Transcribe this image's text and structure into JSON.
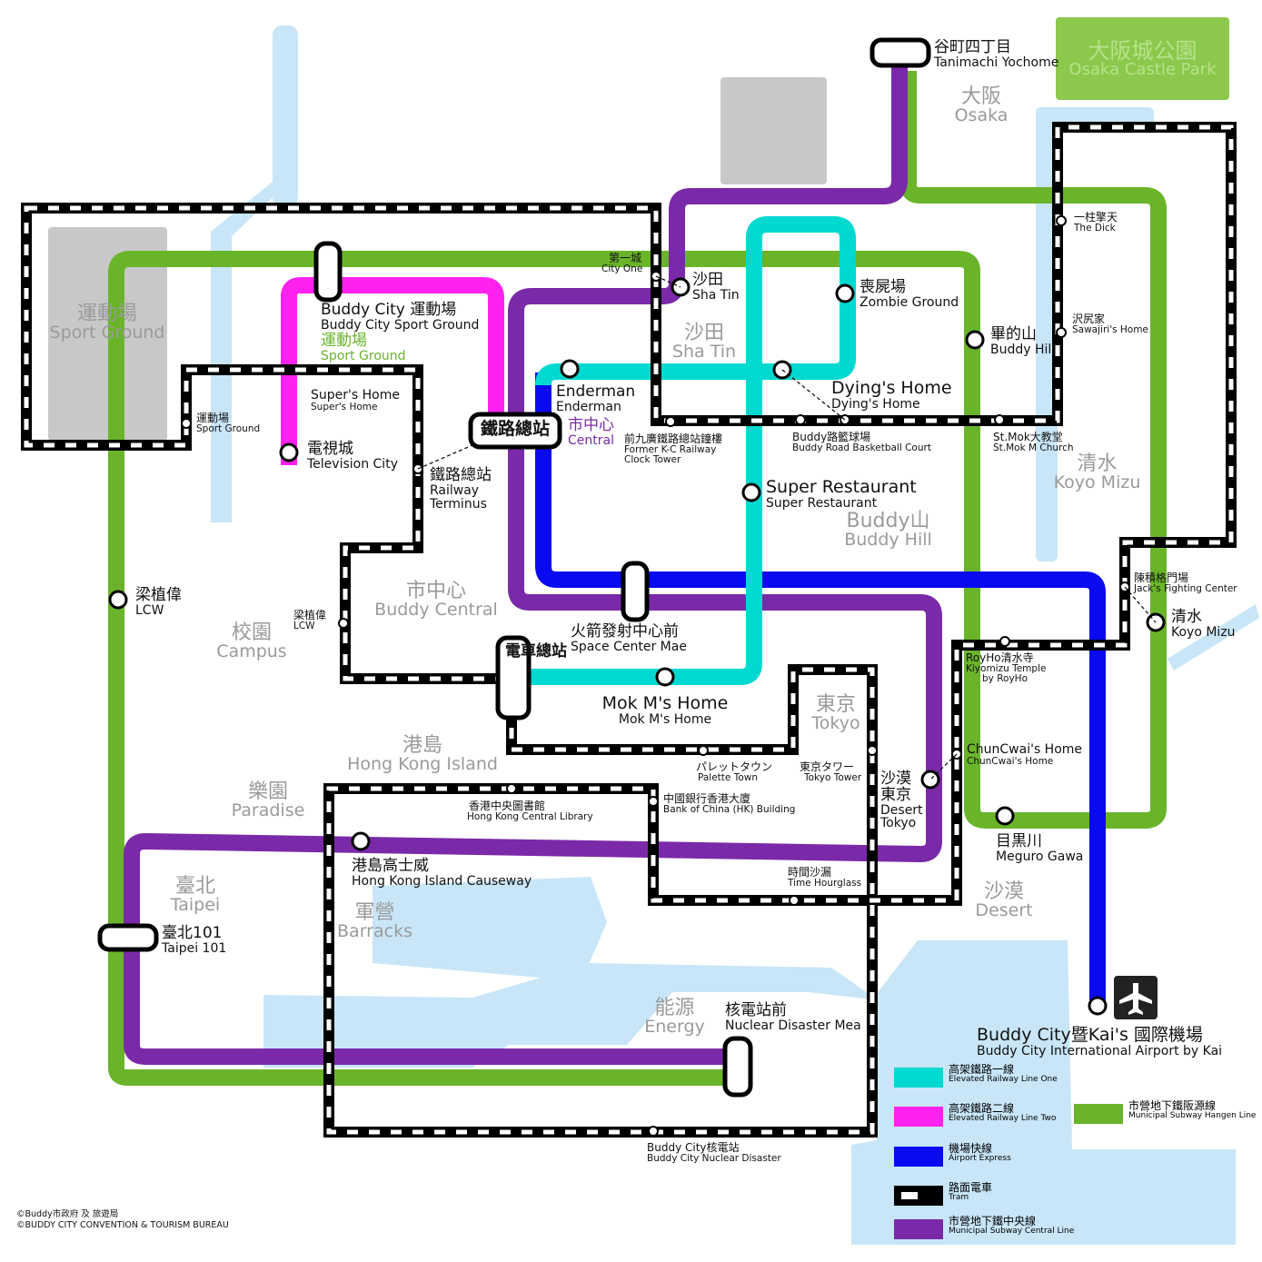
{
  "districts": {
    "sport_ground": {
      "zh": "運動場",
      "en": "Sport Ground"
    },
    "osaka_castle_park": {
      "zh": "大阪城公園",
      "en": "Osaka Castle Park"
    },
    "osaka": {
      "zh": "大阪",
      "en": "Osaka"
    },
    "sha_tin": {
      "zh": "沙田",
      "en": "Sha Tin"
    },
    "koyo_mizu": {
      "zh": "清水",
      "en": "Koyo Mizu"
    },
    "buddy_hill": {
      "zh": "Buddy山",
      "en": "Buddy Hill"
    },
    "buddy_central": {
      "zh": "市中心",
      "en": "Buddy Central"
    },
    "campus": {
      "zh": "校園",
      "en": "Campus"
    },
    "hong_kong_island": {
      "zh": "港島",
      "en": "Hong Kong Island"
    },
    "tokyo": {
      "zh": "東京",
      "en": "Tokyo"
    },
    "paradise": {
      "zh": "樂園",
      "en": "Paradise"
    },
    "taipei": {
      "zh": "臺北",
      "en": "Taipei"
    },
    "barracks": {
      "zh": "軍營",
      "en": "Barracks"
    },
    "desert": {
      "zh": "沙漠",
      "en": "Desert"
    },
    "energy": {
      "zh": "能源",
      "en": "Energy"
    }
  },
  "stations": {
    "tanimachi": {
      "zh": "谷町四丁目",
      "en": "Tanimachi Yochome"
    },
    "city_one": {
      "zh": "第一城",
      "en": "City One"
    },
    "sha_tin": {
      "zh": "沙田",
      "en": "Sha Tin"
    },
    "zombie_ground": {
      "zh": "喪屍場",
      "en": "Zombie Ground"
    },
    "the_dick": {
      "zh": "一柱擎天",
      "en": "The Dick"
    },
    "sawajiri": {
      "zh": "沢尻家",
      "en": "Sawajiri's Home"
    },
    "buddy_hill": {
      "zh": "畢的山",
      "en": "Buddy Hill"
    },
    "sport_ground_pink": {
      "zh": "Buddy City 運動場",
      "en": "Buddy City Sport Ground"
    },
    "sport_ground_green": {
      "zh": "運動場",
      "en": "Sport Ground"
    },
    "supers_home": {
      "zh": "Super's Home",
      "en": "Super's Home"
    },
    "sport_ground_tram": {
      "zh": "運動場",
      "en": "Sport Ground"
    },
    "television_city": {
      "zh": "電視城",
      "en": "Television City"
    },
    "enderman": {
      "zh": "Enderman",
      "en": "Enderman"
    },
    "central": {
      "zh": "市中心",
      "en": "Central"
    },
    "railway_terminus_box": {
      "zh": "鐵路總站"
    },
    "railway_terminus": {
      "zh": "鐵路總站",
      "en1": "Railway",
      "en2": "Terminus"
    },
    "dying_home": {
      "zh": "Dying's Home",
      "en": "Dying's Home"
    },
    "clock_tower": {
      "zh": "前九廣鐵路總站鐘樓",
      "en1": "Former K-C Railway",
      "en2": "Clock Tower"
    },
    "basketball": {
      "zh": "Buddy路籃球場",
      "en": "Buddy Road Basketball Court"
    },
    "st_mok": {
      "zh": "St.Mok大教堂",
      "en": "St.Mok M Church"
    },
    "super_restaurant": {
      "zh": "Super Restaurant",
      "en": "Super Restaurant"
    },
    "jacks": {
      "zh": "陳積格門場",
      "en": "Jack's Fighting Center"
    },
    "koyo_mizu": {
      "zh": "清水",
      "en": "Koyo Mizu"
    },
    "lcw_green": {
      "zh": "梁植偉",
      "en": "LCW"
    },
    "lcw_tram": {
      "zh": "梁植偉",
      "en": "LCW"
    },
    "space_center": {
      "zh": "火箭發射中心前",
      "en": "Space Center Mae"
    },
    "royho": {
      "zh": "RoyHo清水寺",
      "en1": "Kiyomizu Temple",
      "en2": "by RoyHo"
    },
    "tram_terminus": {
      "zh": "電車總站"
    },
    "mok_home": {
      "zh": "Mok M's Home",
      "en": "Mok M's Home"
    },
    "palette_town": {
      "zh": "パレットタウン",
      "en": "Palette Town"
    },
    "tokyo_tower": {
      "zh": "東京タワー",
      "en": "Tokyo Tower"
    },
    "desert_tokyo": {
      "zh1": "沙漠",
      "zh2": "東京",
      "en1": "Desert",
      "en2": "Tokyo"
    },
    "chuncwai": {
      "zh": "ChunCwai's Home",
      "en": "ChunCwai's Home"
    },
    "hk_library": {
      "zh": "香港中央圖書館",
      "en": "Hong Kong Central Library"
    },
    "boc": {
      "zh": "中國銀行香港大廈",
      "en": "Bank of China (HK) Building"
    },
    "meguro": {
      "zh": "目黒川",
      "en": "Meguro Gawa"
    },
    "causeway": {
      "zh": "港島高士威",
      "en": "Hong Kong Island Causeway"
    },
    "hourglass": {
      "zh": "時間沙漏",
      "en": "Time Hourglass"
    },
    "taipei101": {
      "zh": "臺北101",
      "en": "Taipei 101"
    },
    "nuclear_mea": {
      "zh": "核電站前",
      "en": "Nuclear Disaster Mea"
    },
    "airport": {
      "zh": "Buddy City暨Kai's 國際機場",
      "en": "Buddy City International Airport by Kai"
    },
    "nuclear": {
      "zh": "Buddy City核電站",
      "en": "Buddy City Nuclear Disaster"
    }
  },
  "legend": [
    {
      "zh": "高架鐵路一線",
      "en": "Elevated Railway Line One",
      "color": "#00d9d0"
    },
    {
      "zh": "高架鐵路二線",
      "en": "Elevated Railway Line Two",
      "color": "#ff22ee"
    },
    {
      "zh": "機場快線",
      "en": "Airport Express",
      "color": "#0a0af0"
    },
    {
      "zh": "路面電車",
      "en": "Tram",
      "color": "#000000"
    },
    {
      "zh": "市營地下鐵中央線",
      "en": "Municipal Subway Central Line",
      "color": "#7a2aa8"
    },
    {
      "zh": "市營地下鐵阪源線",
      "en": "Municipal Subway Hangen Line",
      "color": "#6ab42a"
    }
  ],
  "credits": {
    "line1": "©Buddy市政府 及 旅遊局",
    "line2": "©BUDDY CITY CONVENTION & TOURISM BUREAU"
  },
  "colors": {
    "cyan": "#00d9d0",
    "magenta": "#ff22ee",
    "blue": "#0a0af0",
    "purple": "#7a2aa8",
    "green": "#6ab42a",
    "water": "#c8e6f8",
    "park": "#8cc84b",
    "gray": "#c8c8c8",
    "district_text": "#9a9a9a"
  },
  "icons": {
    "airport": "airplane-icon"
  }
}
